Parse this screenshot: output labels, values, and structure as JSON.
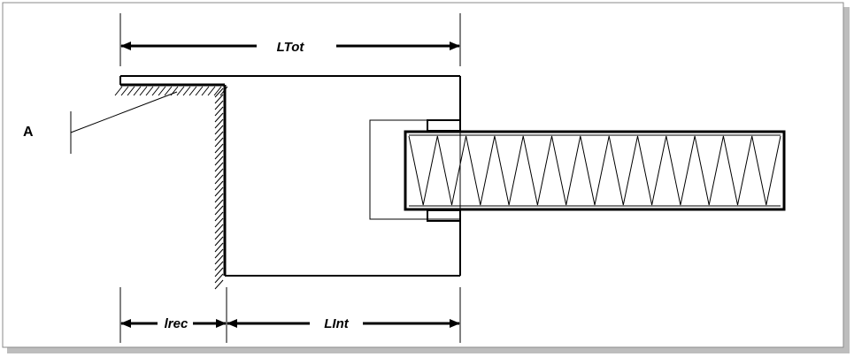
{
  "labels": {
    "total_length": "LTot",
    "recess_length": "lrec",
    "interior_length": "LInt",
    "point_a": "A"
  },
  "colors": {
    "line": "#000000",
    "frame_border": "#8a8a8a",
    "frame_shadow": "#bdbdbd",
    "background": "#ffffff"
  },
  "spring": {
    "zigzag_peaks": 13
  }
}
